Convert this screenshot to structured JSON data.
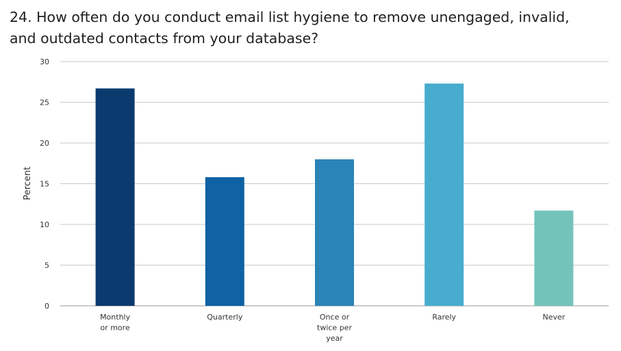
{
  "chart_data": {
    "type": "bar",
    "title": "24. How often do you conduct email list hygiene to remove unengaged, invalid, and outdated contacts from your database?",
    "xlabel": "",
    "ylabel": "Percent",
    "ylim": [
      0,
      30
    ],
    "yticks": [
      0,
      5,
      10,
      15,
      20,
      25,
      30
    ],
    "grid": true,
    "categories": [
      [
        "Monthly",
        "or more"
      ],
      [
        "Quarterly"
      ],
      [
        "Once or",
        "twice per",
        "year"
      ],
      [
        "Rarely"
      ],
      [
        "Never"
      ]
    ],
    "values": [
      26.7,
      15.8,
      18.0,
      27.3,
      11.7
    ],
    "colors": [
      "#0b3a6e",
      "#0f62a3",
      "#2a84b8",
      "#47acce",
      "#74c3bb"
    ]
  }
}
